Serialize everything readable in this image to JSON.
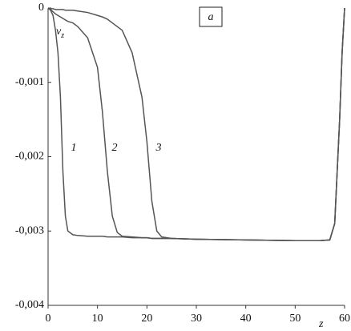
{
  "chart_data": {
    "type": "line",
    "y_label": "v",
    "y_label_sub": "z",
    "x_label": "z",
    "annotation": "a",
    "x": [
      0,
      0.5,
      1,
      1.5,
      2,
      2.5,
      3,
      3.5,
      4,
      5,
      6,
      8,
      10,
      11,
      12,
      13,
      14,
      15,
      17,
      19,
      20,
      21,
      22,
      23,
      25,
      30,
      40,
      50,
      55,
      57,
      58,
      59,
      59.5,
      60
    ],
    "series": [
      {
        "name": "1",
        "color": "#555555",
        "values": [
          0,
          -3e-05,
          -0.0001,
          -0.0003,
          -0.0006,
          -0.0012,
          -0.0022,
          -0.0028,
          -0.003,
          -0.00305,
          -0.00306,
          -0.00307,
          -0.00307,
          -0.00307,
          -0.00308,
          -0.00308,
          -0.00308,
          -0.00308,
          -0.00309,
          -0.00309,
          -0.00309,
          -0.0031,
          -0.0031,
          -0.0031,
          -0.0031,
          -0.00311,
          -0.00312,
          -0.00313,
          -0.00313,
          -0.00312,
          -0.0029,
          -0.0015,
          -0.0006,
          0
        ]
      },
      {
        "name": "2",
        "color": "#555555",
        "values": [
          0,
          -2e-05,
          -5e-05,
          -8e-05,
          -0.0001,
          -0.00012,
          -0.00014,
          -0.00016,
          -0.00018,
          -0.0002,
          -0.00025,
          -0.0004,
          -0.0008,
          -0.0014,
          -0.0022,
          -0.0028,
          -0.00302,
          -0.00307,
          -0.00308,
          -0.00309,
          -0.00309,
          -0.0031,
          -0.0031,
          -0.0031,
          -0.0031,
          -0.00311,
          -0.00312,
          -0.00313,
          -0.00313,
          -0.00312,
          -0.0029,
          -0.0015,
          -0.0006,
          0
        ]
      },
      {
        "name": "3",
        "color": "#555555",
        "values": [
          0,
          -1e-05,
          -1e-05,
          -2e-05,
          -2e-05,
          -2e-05,
          -2e-05,
          -3e-05,
          -3e-05,
          -3e-05,
          -4e-05,
          -6e-05,
          -0.0001,
          -0.00012,
          -0.00015,
          -0.0002,
          -0.00025,
          -0.0003,
          -0.0006,
          -0.0012,
          -0.0018,
          -0.0026,
          -0.003,
          -0.00308,
          -0.0031,
          -0.00311,
          -0.00312,
          -0.00313,
          -0.00313,
          -0.00312,
          -0.0029,
          -0.0015,
          -0.0006,
          0
        ]
      }
    ],
    "xlim": [
      0,
      60
    ],
    "xticks": [
      0,
      10,
      20,
      30,
      40,
      50,
      60
    ],
    "ylim": [
      -0.004,
      0
    ],
    "yticks": [
      0,
      {
        "value": -0.001,
        "label": "-0,001"
      },
      {
        "value": -0.002,
        "label": "-0,002"
      },
      {
        "value": -0.003,
        "label": "-0,003"
      },
      {
        "value": -0.004,
        "label": "-0,004"
      }
    ],
    "grid": false
  }
}
